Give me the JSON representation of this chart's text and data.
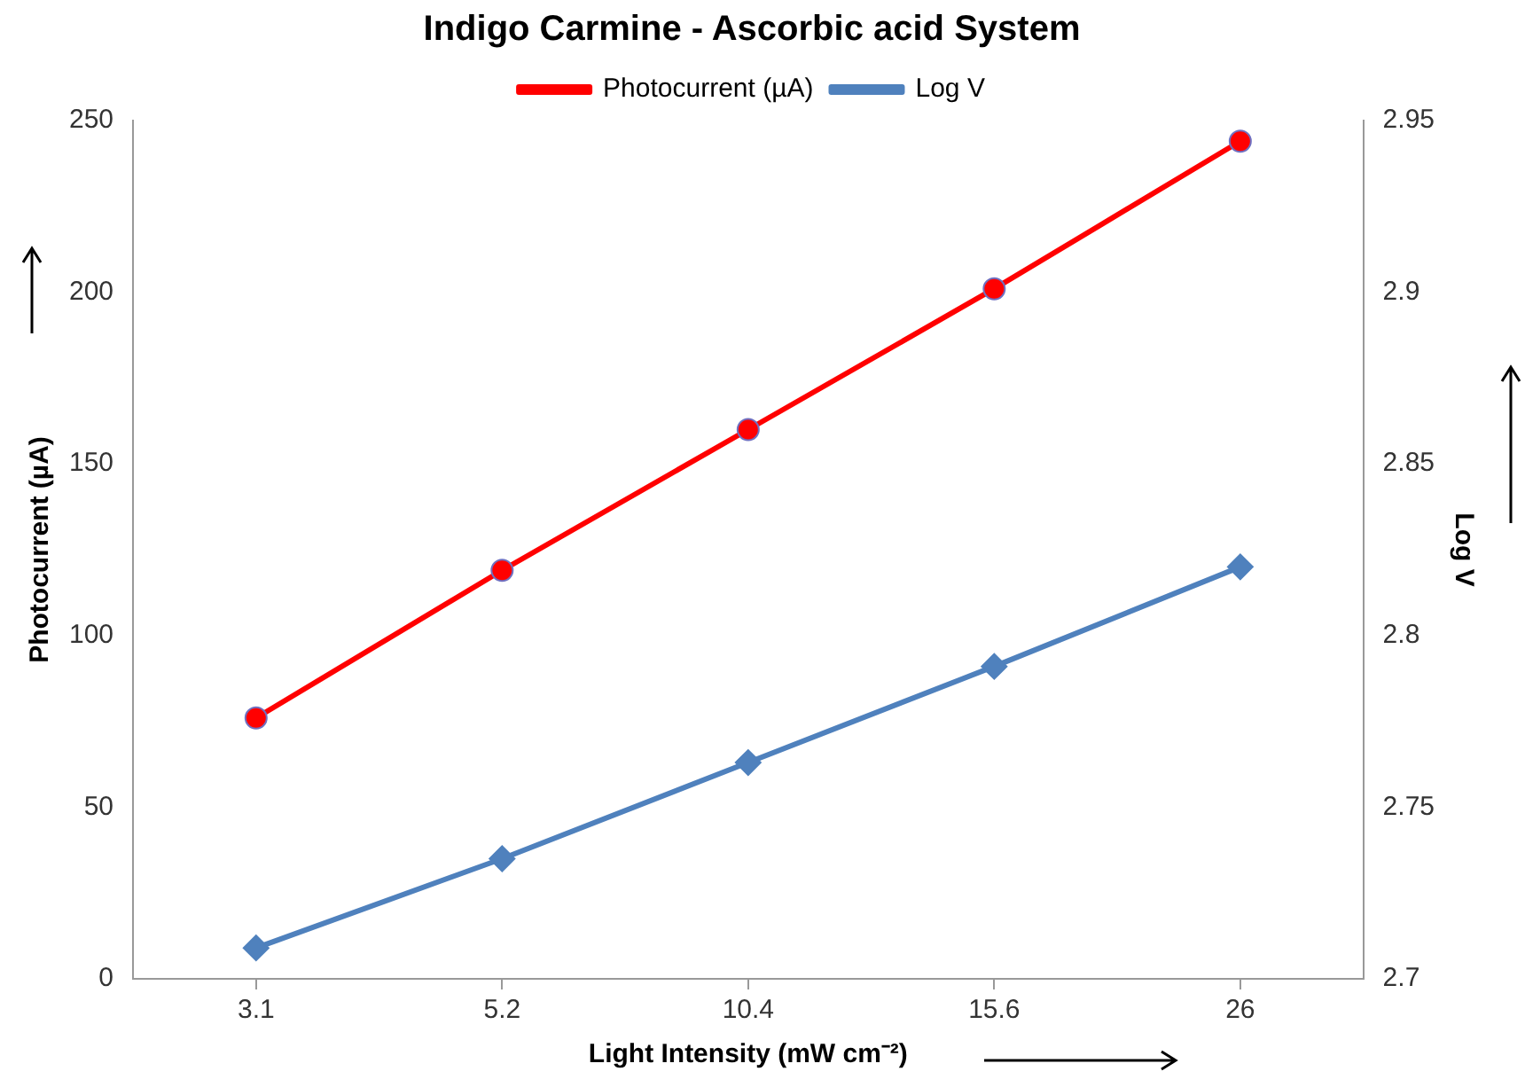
{
  "chart_data": {
    "type": "line",
    "title": "Indigo Carmine - Ascorbic acid System",
    "xlabel": "Light Intensity (mW cm⁻²)",
    "ylabel": "Photocurrent (µA)",
    "y2label": "Log V",
    "categories": [
      "3.1",
      "5.2",
      "10.4",
      "15.6",
      "26"
    ],
    "series": [
      {
        "name": "Photocurrent (µA)",
        "color": "#ff0000",
        "marker": "circle",
        "values": [
          76,
          119,
          160,
          201,
          244
        ]
      },
      {
        "name": "Log V",
        "color": "#4f81bd",
        "marker": "diamond",
        "axis": "y2",
        "values": [
          2.709,
          2.735,
          2.763,
          2.791,
          2.82
        ]
      }
    ],
    "ylim": [
      0,
      250
    ],
    "yticks": [
      0,
      50,
      100,
      150,
      200,
      250
    ],
    "y2lim": [
      2.7,
      2.95
    ],
    "y2ticks": [
      2.7,
      2.75,
      2.8,
      2.85,
      2.9,
      2.95
    ],
    "grid": false,
    "legend": "top",
    "line_style": "solid"
  }
}
